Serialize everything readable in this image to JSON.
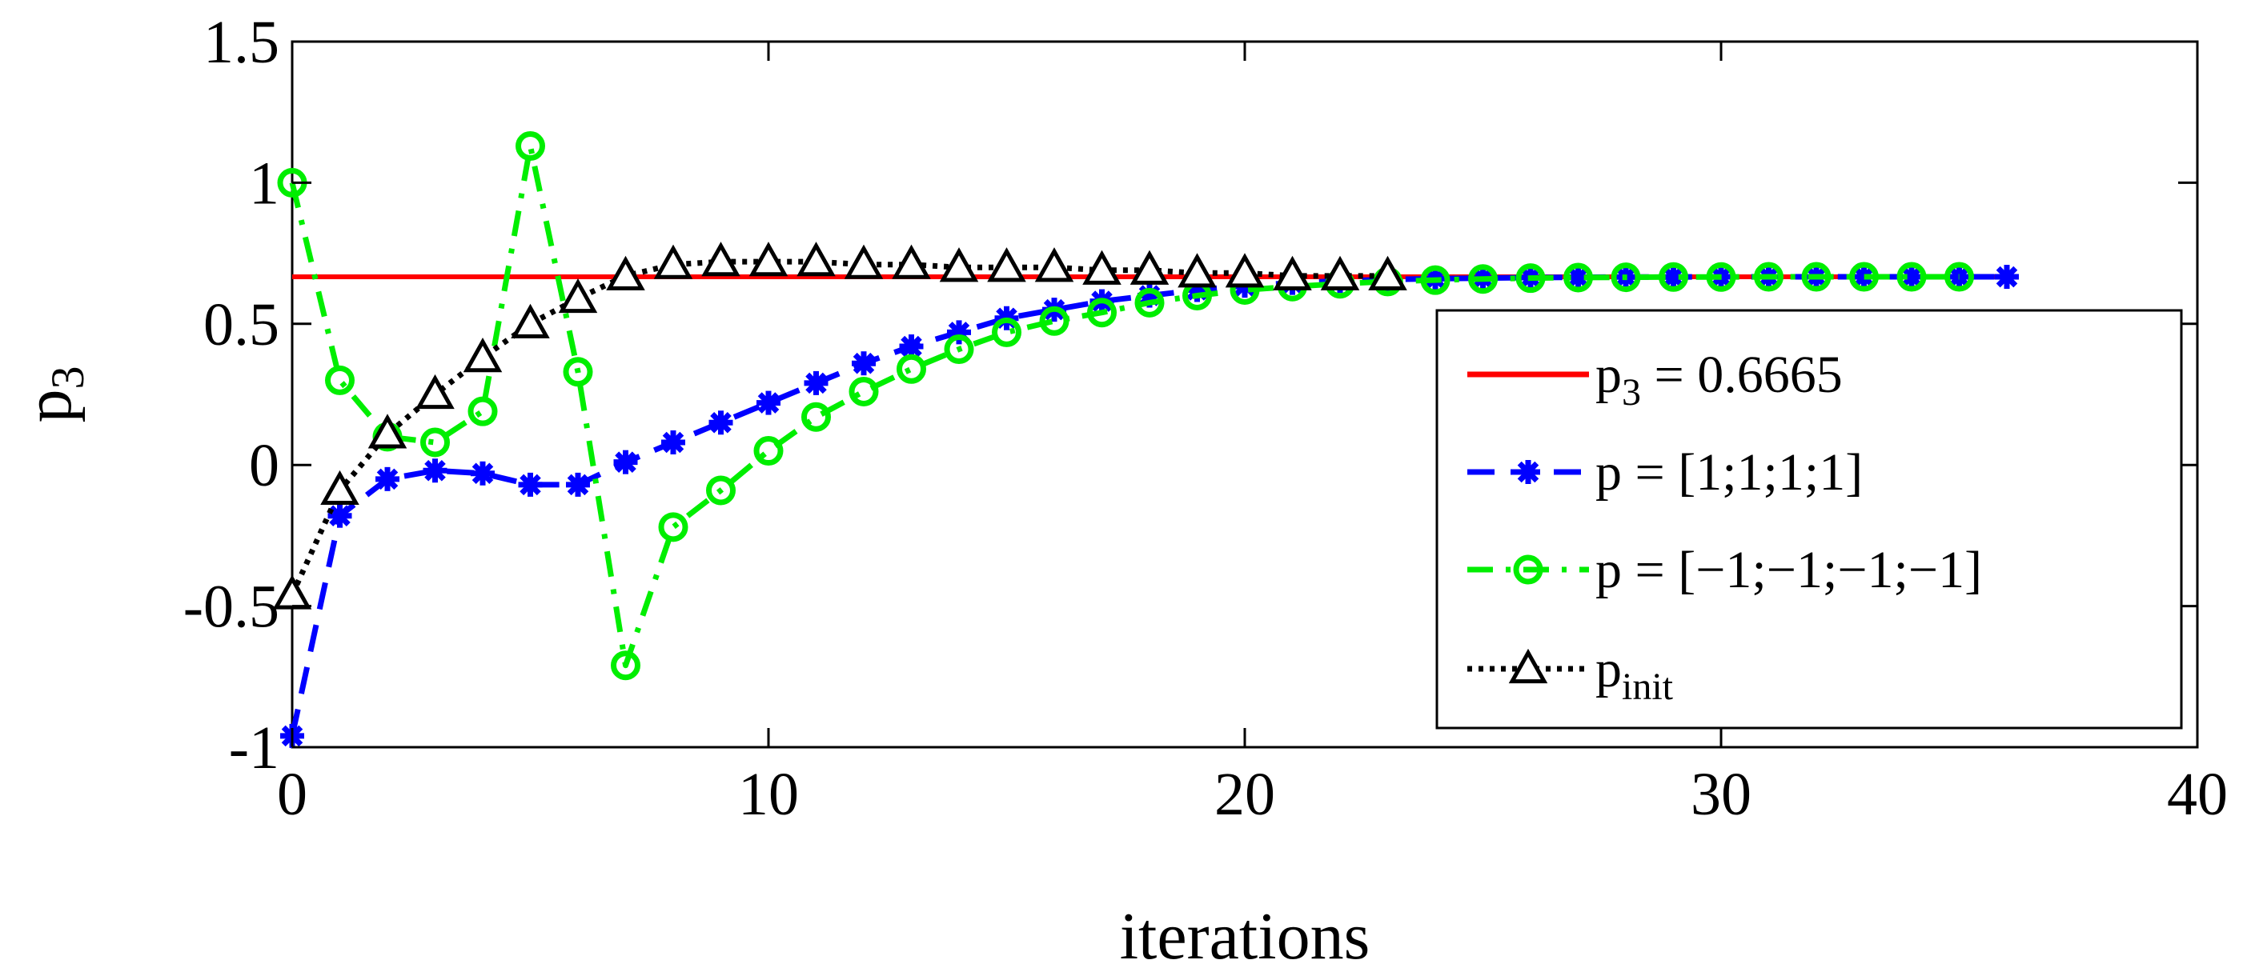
{
  "chart_data": {
    "type": "line",
    "title": "",
    "xlabel": "iterations",
    "ylabel": {
      "main": "p",
      "sub": "3"
    },
    "xlim": [
      0,
      40
    ],
    "ylim": [
      -1,
      1.5
    ],
    "xticks": [
      0,
      10,
      20,
      30,
      40
    ],
    "xtick_labels": [
      "0",
      "10",
      "20",
      "30",
      "40"
    ],
    "yticks": [
      -1,
      -0.5,
      0,
      0.5,
      1,
      1.5
    ],
    "ytick_labels": [
      "-1",
      "-0.5",
      "0",
      "0.5",
      "1",
      "1.5"
    ],
    "grid": false,
    "legend_position": "right",
    "reference_line": {
      "name": "p3 = 0.6665",
      "label_main": "p",
      "label_sub": "3",
      "label_rest": " = 0.6665",
      "value": 0.6665,
      "x_range": [
        0,
        36
      ],
      "color": "#ff0000"
    },
    "series": [
      {
        "name": "p = [1;1;1;1]",
        "label_main": "p = [1;1;1;1]",
        "color": "#0000ff",
        "marker": "asterisk",
        "line": "dashed",
        "x": [
          0,
          1,
          2,
          3,
          4,
          5,
          6,
          7,
          8,
          9,
          10,
          11,
          12,
          13,
          14,
          15,
          16,
          17,
          18,
          19,
          20,
          21,
          22,
          23,
          24,
          25,
          26,
          27,
          28,
          29,
          30,
          31,
          32,
          33,
          34,
          35,
          36
        ],
        "values": [
          -0.96,
          -0.18,
          -0.05,
          -0.02,
          -0.03,
          -0.07,
          -0.07,
          0.01,
          0.08,
          0.15,
          0.22,
          0.29,
          0.36,
          0.42,
          0.47,
          0.52,
          0.55,
          0.58,
          0.6,
          0.62,
          0.635,
          0.645,
          0.652,
          0.657,
          0.66,
          0.662,
          0.664,
          0.665,
          0.666,
          0.666,
          0.6665,
          0.6665,
          0.6665,
          0.6665,
          0.6665,
          0.6665,
          0.6665
        ]
      },
      {
        "name": "p = [−1;−1;−1;−1]",
        "label_main": "p = [−1;−1;−1;−1]",
        "color": "#00ee00",
        "marker": "circle",
        "line": "dashdot",
        "x": [
          0,
          1,
          2,
          3,
          4,
          5,
          6,
          7,
          8,
          9,
          10,
          11,
          12,
          13,
          14,
          15,
          16,
          17,
          18,
          19,
          20,
          21,
          22,
          23,
          24,
          25,
          26,
          27,
          28,
          29,
          30,
          31,
          32,
          33,
          34,
          35
        ],
        "values": [
          1.0,
          0.3,
          0.1,
          0.08,
          0.19,
          1.13,
          0.33,
          -0.71,
          -0.22,
          -0.09,
          0.05,
          0.17,
          0.26,
          0.34,
          0.41,
          0.47,
          0.51,
          0.54,
          0.575,
          0.6,
          0.62,
          0.632,
          0.642,
          0.65,
          0.655,
          0.659,
          0.662,
          0.664,
          0.665,
          0.666,
          0.666,
          0.6665,
          0.6665,
          0.6665,
          0.6665,
          0.6665
        ]
      },
      {
        "name": "p_init",
        "label_main": "p",
        "label_sub": "init",
        "color": "#000000",
        "marker": "triangle",
        "line": "dotted",
        "x": [
          0,
          1,
          2,
          3,
          4,
          5,
          6,
          7,
          8,
          9,
          10,
          11,
          12,
          13,
          14,
          15,
          16,
          17,
          18,
          19,
          20,
          21,
          22,
          23
        ],
        "values": [
          -0.46,
          -0.09,
          0.11,
          0.25,
          0.38,
          0.5,
          0.59,
          0.67,
          0.71,
          0.72,
          0.72,
          0.72,
          0.71,
          0.71,
          0.7,
          0.7,
          0.7,
          0.69,
          0.69,
          0.68,
          0.68,
          0.67,
          0.67,
          0.67
        ]
      }
    ]
  }
}
